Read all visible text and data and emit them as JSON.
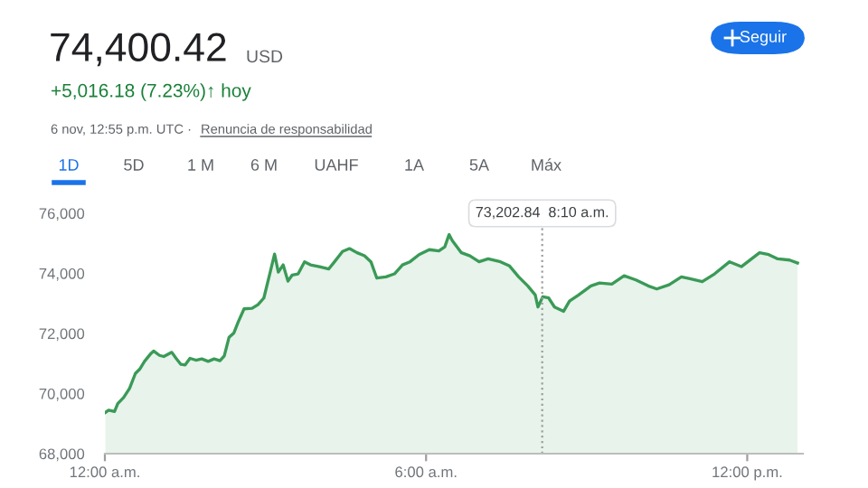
{
  "chart_data": {
    "type": "area",
    "title": "74,400.42",
    "subtitle": "+5,016.18 (7.23%)↑ hoy",
    "annotations": [
      "USD",
      "6 nov, 12:55 p.m. UTC · ",
      "Renuncia de responsabilidad",
      "Seguir",
      "1D",
      "5D",
      "1 M",
      "6 M",
      "UAHF",
      "1A",
      "5A",
      "Máx",
      "73,202.84  8:10 a.m."
    ],
    "x": [
      0.01,
      0.07,
      0.18,
      0.24,
      0.35,
      0.46,
      0.57,
      0.65,
      0.74,
      0.86,
      0.91,
      1.02,
      1.1,
      1.25,
      1.33,
      1.42,
      1.5,
      1.59,
      1.7,
      1.81,
      1.93,
      2.04,
      2.15,
      2.23,
      2.32,
      2.41,
      2.49,
      2.6,
      2.75,
      2.86,
      2.97,
      3.08,
      3.17,
      3.24,
      3.33,
      3.42,
      3.5,
      3.61,
      3.73,
      3.84,
      4.01,
      4.18,
      4.29,
      4.44,
      4.57,
      4.71,
      4.85,
      4.97,
      5.08,
      5.25,
      5.41,
      5.56,
      5.7,
      5.87,
      6.06,
      6.24,
      6.35,
      6.43,
      6.49,
      6.66,
      6.82,
      6.99,
      7.16,
      7.39,
      7.56,
      7.73,
      7.9,
      8.04,
      8.09,
      8.18,
      8.29,
      8.4,
      8.57,
      8.68,
      8.85,
      9.08,
      9.24,
      9.47,
      9.7,
      9.92,
      10.15,
      10.31,
      10.54,
      10.77,
      10.93,
      11.16,
      11.39,
      11.67,
      11.89,
      12.23,
      12.4,
      12.57,
      12.79,
      12.94
    ],
    "series": [
      {
        "color": "#3a9a57",
        "values": [
          69370,
          69446,
          69404,
          69667,
          69867,
          70169,
          70669,
          70812,
          71072,
          71333,
          71416,
          71271,
          71233,
          71373,
          71173,
          70972,
          70952,
          71173,
          71112,
          71153,
          71072,
          71153,
          71092,
          71253,
          71875,
          72018,
          72379,
          72819,
          72839,
          72960,
          73181,
          73984,
          74644,
          74042,
          74283,
          73740,
          73946,
          73984,
          74386,
          74283,
          74223,
          74145,
          74386,
          74729,
          74825,
          74687,
          74584,
          74386,
          73843,
          73885,
          73984,
          74283,
          74386,
          74626,
          74789,
          74747,
          74885,
          75289,
          75090,
          74687,
          74584,
          74386,
          74484,
          74386,
          74246,
          73885,
          73584,
          73283,
          72880,
          73223,
          73181,
          72880,
          72739,
          73078,
          73283,
          73584,
          73680,
          73643,
          73922,
          73783,
          73584,
          73482,
          73622,
          73885,
          73825,
          73723,
          73984,
          74386,
          74223,
          74687,
          74626,
          74484,
          74444,
          74346
        ]
      }
    ],
    "ref_lines": [
      {
        "axis": "x",
        "value": 8.17,
        "line_style": "dotted",
        "color": "#9e9e9e"
      }
    ],
    "xlim": [
      0,
      13.04
    ],
    "ylim": [
      68000,
      76000
    ],
    "xticks": [
      {
        "value": 0,
        "label": "12:00 a.m."
      },
      {
        "value": 6,
        "label": "6:00 a.m."
      },
      {
        "value": 12,
        "label": "12:00 p.m."
      }
    ],
    "yticks": [
      {
        "value": 68000,
        "label": "68,000"
      },
      {
        "value": 70000,
        "label": "70,000"
      },
      {
        "value": 72000,
        "label": "72,000"
      },
      {
        "value": 74000,
        "label": "74,000"
      },
      {
        "value": 76000,
        "label": "76,000"
      }
    ],
    "grid": false,
    "legend": false
  }
}
